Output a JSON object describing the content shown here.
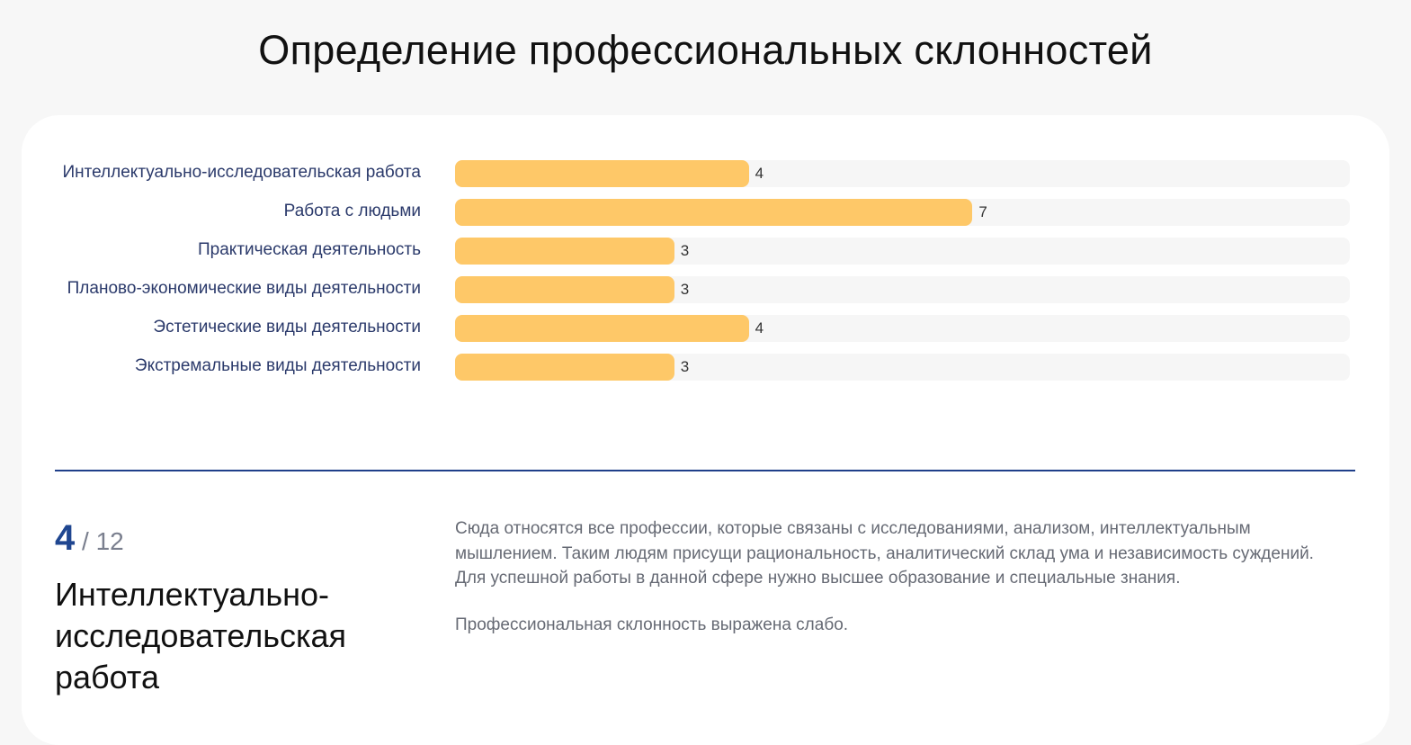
{
  "title": "Определение профессиональных склонностей",
  "chart_data": {
    "type": "bar",
    "orientation": "horizontal",
    "categories": [
      "Интеллектуально-исследовательская работа",
      "Работа с людьми",
      "Практическая деятельность",
      "Планово-экономические виды деятельности",
      "Эстетические виды деятельности",
      "Экстремальные виды деятельности"
    ],
    "values": [
      4,
      7,
      3,
      3,
      4,
      3
    ],
    "xlim": [
      0,
      12
    ],
    "bar_color": "#fec868",
    "track_color": "#f6f6f6"
  },
  "detail": {
    "score": "4",
    "max": "/ 12",
    "category": "Интеллектуально-исследовательская работа",
    "description": "Сюда относятся все профессии, которые связаны с исследованиями, анализом, интеллектуальным мышлением. Таким людям присущи рациональность, аналитический склад ума и независимость суждений. Для успешной работы в данной сфере нужно высшее образование и специальные знания.",
    "level": "Профессиональная склонность выражена слабо."
  }
}
